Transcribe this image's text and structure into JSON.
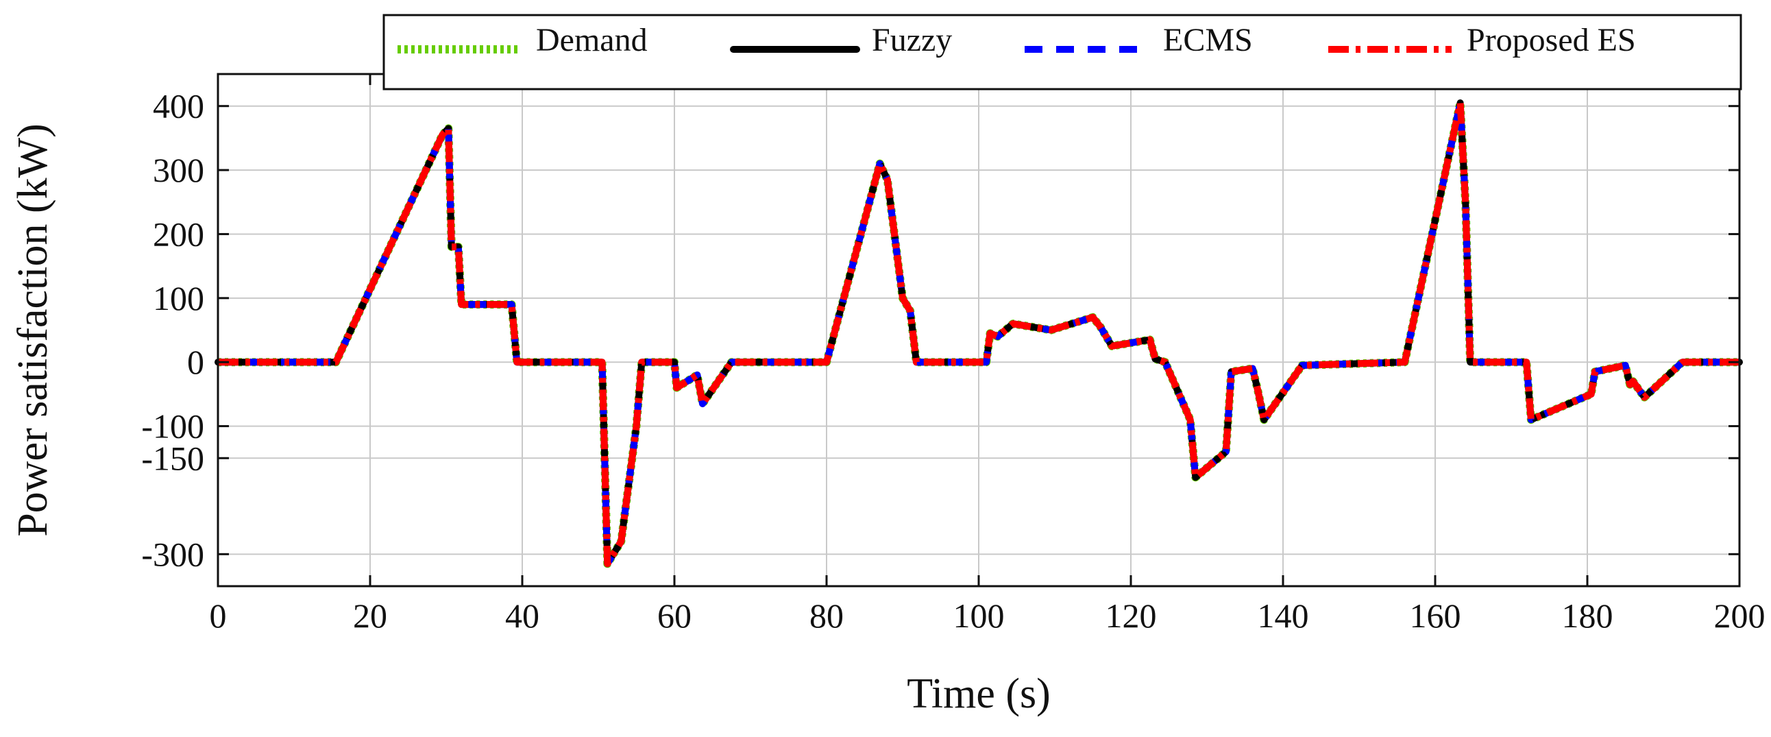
{
  "chart_data": {
    "type": "line",
    "title": "",
    "xlabel": "Time (s)",
    "ylabel": "Power satisfaction (kW)",
    "xlim": [
      0,
      200
    ],
    "ylim": [
      -350,
      450
    ],
    "x_ticks": [
      0,
      20,
      40,
      60,
      80,
      100,
      120,
      140,
      160,
      180,
      200
    ],
    "x_tick_labels": [
      "0",
      "20",
      "40",
      "60",
      "80",
      "100",
      "120",
      "140",
      "160",
      "180",
      "200"
    ],
    "y_ticks": [
      400,
      300,
      200,
      100,
      0,
      -100,
      -150,
      -300
    ],
    "y_tick_labels": [
      "400",
      "300",
      "200",
      "100",
      "0",
      "-100",
      "-150",
      "-300"
    ],
    "grid": true,
    "legend_position": "top",
    "series": [
      {
        "name": "Demand",
        "color": "#66cc00",
        "style": "dotted"
      },
      {
        "name": "Fuzzy",
        "color": "#000000",
        "style": "solid"
      },
      {
        "name": "ECMS",
        "color": "#0000ff",
        "style": "dashed"
      },
      {
        "name": "Proposed ES",
        "color": "#ff0000",
        "style": "dash-dot"
      }
    ],
    "x": [
      0,
      15.5,
      29.5,
      30.3,
      30.7,
      31.6,
      32,
      38.6,
      39.3,
      50.5,
      51.2,
      53,
      55,
      55.7,
      60,
      60.3,
      63,
      63.7,
      67.5,
      80,
      87,
      88,
      90,
      91,
      91.8,
      101,
      101.5,
      102.5,
      104.5,
      109.5,
      115,
      116,
      117.5,
      122.5,
      123.2,
      124.5,
      127.8,
      128.5,
      132.5,
      133.2,
      136,
      136.7,
      137.5,
      142.5,
      156,
      163.3,
      164,
      164.6,
      172,
      172.6,
      180.5,
      181,
      185,
      185.6,
      186,
      187.5,
      192.5,
      200
    ],
    "y": [
      0,
      0,
      355,
      365,
      180,
      180,
      90,
      90,
      0,
      0,
      -315,
      -280,
      -100,
      0,
      0,
      -40,
      -20,
      -65,
      0,
      0,
      310,
      285,
      100,
      80,
      0,
      0,
      45,
      40,
      60,
      50,
      70,
      55,
      25,
      35,
      5,
      0,
      -90,
      -180,
      -140,
      -15,
      -10,
      -45,
      -90,
      -5,
      0,
      405,
      245,
      0,
      0,
      -90,
      -50,
      -15,
      -5,
      -35,
      -30,
      -55,
      0,
      0
    ]
  }
}
